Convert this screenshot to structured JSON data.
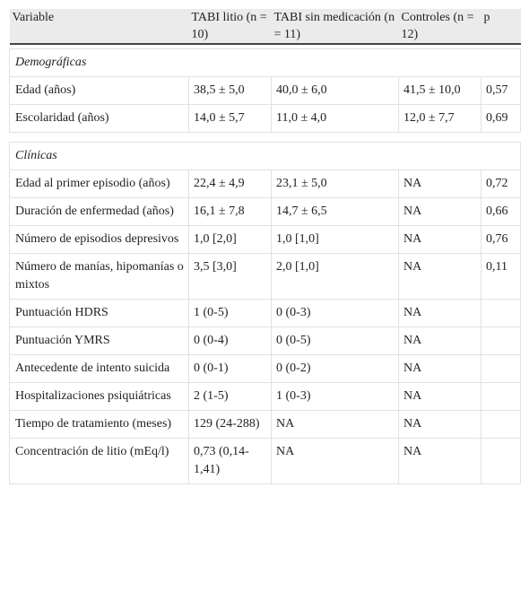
{
  "table": {
    "header": [
      "Variable",
      "TABI litio (n = 10)",
      "TABI sin medicación (n = 11)",
      "Controles (n = 12)",
      "p"
    ],
    "sections": [
      {
        "title": "Demográficas",
        "rows": [
          [
            "Edad (años)",
            "38,5 ± 5,0",
            "40,0 ± 6,0",
            "41,5 ± 10,0",
            "0,57"
          ],
          [
            "Escolaridad (años)",
            "14,0 ± 5,7",
            "11,0 ± 4,0",
            "12,0 ± 7,7",
            "0,69"
          ]
        ]
      },
      {
        "title": "Clínicas",
        "rows": [
          [
            "Edad al primer episodio (años)",
            "22,4 ± 4,9",
            "23,1 ± 5,0",
            "NA",
            "0,72"
          ],
          [
            "Duración de enfermedad (años)",
            "16,1 ± 7,8",
            "14,7 ± 6,5",
            "NA",
            "0,66"
          ],
          [
            "Número de episodios depresivos",
            "1,0 [2,0]",
            "1,0 [1,0]",
            "NA",
            "0,76"
          ],
          [
            "Número de manías, hipomanías o mixtos",
            "3,5 [3,0]",
            "2,0 [1,0]",
            "NA",
            "0,11"
          ],
          [
            "Puntuación HDRS",
            "1 (0-5)",
            "0 (0-3)",
            "NA"
          ],
          [
            "Puntuación YMRS",
            "0 (0-4)",
            "0 (0-5)",
            "NA"
          ],
          [
            "Antecedente de intento suicida",
            "0 (0-1)",
            "0 (0-2)",
            "NA"
          ],
          [
            "Hospitalizaciones psiquiátricas",
            "2 (1-5)",
            "1 (0-3)",
            "NA"
          ],
          [
            "Tiempo de tratamiento (meses)",
            "129 (24-288)",
            "NA",
            "NA"
          ],
          [
            "Concentración de litio (mEq/l)",
            "0,73 (0,14-1,41)",
            "NA",
            "NA"
          ]
        ]
      }
    ]
  }
}
